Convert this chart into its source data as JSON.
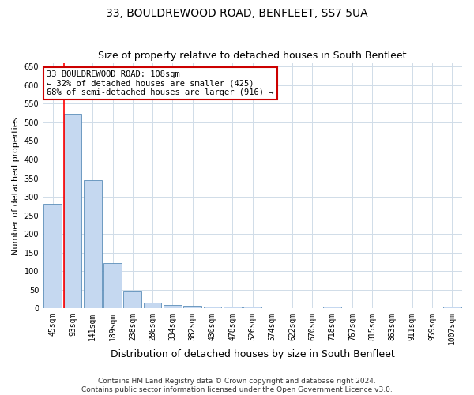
{
  "title1": "33, BOULDREWOOD ROAD, BENFLEET, SS7 5UA",
  "title2": "Size of property relative to detached houses in South Benfleet",
  "xlabel": "Distribution of detached houses by size in South Benfleet",
  "ylabel": "Number of detached properties",
  "categories": [
    "45sqm",
    "93sqm",
    "141sqm",
    "189sqm",
    "238sqm",
    "286sqm",
    "334sqm",
    "382sqm",
    "430sqm",
    "478sqm",
    "526sqm",
    "574sqm",
    "622sqm",
    "670sqm",
    "718sqm",
    "767sqm",
    "815sqm",
    "863sqm",
    "911sqm",
    "959sqm",
    "1007sqm"
  ],
  "values": [
    281,
    524,
    345,
    121,
    47,
    16,
    10,
    8,
    5,
    5,
    5,
    0,
    0,
    0,
    5,
    0,
    0,
    0,
    0,
    0,
    5
  ],
  "bar_color": "#c5d8f0",
  "bar_edge_color": "#5b8db8",
  "vline_color": "#ff0000",
  "annotation_text": "33 BOULDREWOOD ROAD: 108sqm\n← 32% of detached houses are smaller (425)\n68% of semi-detached houses are larger (916) →",
  "annotation_box_color": "#ffffff",
  "annotation_box_edge": "#cc0000",
  "ylim": [
    0,
    660
  ],
  "yticks": [
    0,
    50,
    100,
    150,
    200,
    250,
    300,
    350,
    400,
    450,
    500,
    550,
    600,
    650
  ],
  "grid_color": "#d0dce8",
  "footer": "Contains HM Land Registry data © Crown copyright and database right 2024.\nContains public sector information licensed under the Open Government Licence v3.0.",
  "title1_fontsize": 10,
  "title2_fontsize": 9,
  "xlabel_fontsize": 9,
  "ylabel_fontsize": 8,
  "tick_fontsize": 7,
  "annotation_fontsize": 7.5,
  "footer_fontsize": 6.5
}
